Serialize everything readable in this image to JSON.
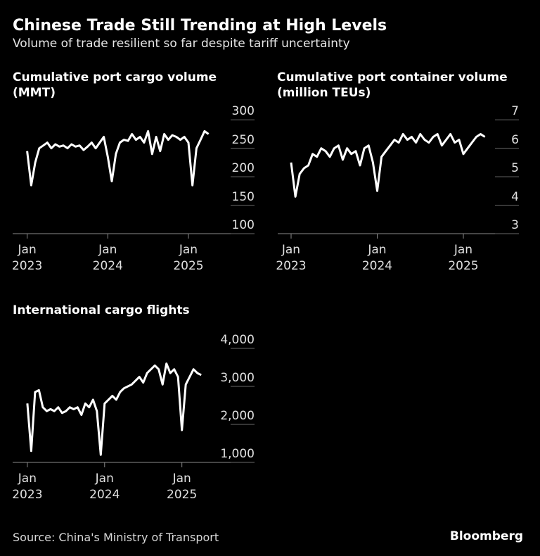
{
  "title": "Chinese Trade Still Trending at High Levels",
  "subtitle": "Volume of trade resilient so far despite tariff uncertainty",
  "source": "Source: China's Ministry of Transport",
  "brand": "Bloomberg",
  "chart_data": [
    {
      "type": "line",
      "title": "Cumulative port cargo volume (MMT)",
      "x": [
        2023,
        2023.05,
        2023.1,
        2023.15,
        2023.2,
        2023.25,
        2023.3,
        2023.35,
        2023.4,
        2023.45,
        2023.5,
        2023.55,
        2023.6,
        2023.65,
        2023.7,
        2023.75,
        2023.8,
        2023.85,
        2023.9,
        2023.95,
        2024,
        2024.05,
        2024.1,
        2024.15,
        2024.2,
        2024.25,
        2024.3,
        2024.35,
        2024.4,
        2024.45,
        2024.5,
        2024.55,
        2024.6,
        2024.65,
        2024.7,
        2024.75,
        2024.8,
        2024.85,
        2024.9,
        2024.95,
        2025,
        2025.05,
        2025.1,
        2025.15,
        2025.2,
        2025.25
      ],
      "values": [
        245,
        185,
        225,
        250,
        255,
        260,
        250,
        257,
        253,
        255,
        250,
        257,
        253,
        255,
        247,
        253,
        260,
        250,
        260,
        270,
        235,
        192,
        240,
        260,
        265,
        263,
        275,
        265,
        270,
        260,
        280,
        240,
        270,
        245,
        275,
        265,
        273,
        270,
        265,
        270,
        260,
        185,
        250,
        265,
        280,
        275
      ],
      "color": "#ffffff",
      "xlim": [
        2022.82,
        2025.82
      ],
      "ylim": [
        100,
        330
      ],
      "xticks": [
        {
          "value": 2023,
          "label": "Jan\n2023"
        },
        {
          "value": 2024,
          "label": "Jan\n2024"
        },
        {
          "value": 2025,
          "label": "Jan\n2025"
        }
      ],
      "yticks": [
        100,
        150,
        200,
        250,
        300
      ]
    },
    {
      "type": "line",
      "title": "Cumulative port container volume (million TEUs)",
      "x": [
        2023,
        2023.05,
        2023.1,
        2023.15,
        2023.2,
        2023.25,
        2023.3,
        2023.35,
        2023.4,
        2023.45,
        2023.5,
        2023.55,
        2023.6,
        2023.65,
        2023.7,
        2023.75,
        2023.8,
        2023.85,
        2023.9,
        2023.95,
        2024,
        2024.05,
        2024.1,
        2024.15,
        2024.2,
        2024.25,
        2024.3,
        2024.35,
        2024.4,
        2024.45,
        2024.5,
        2024.55,
        2024.6,
        2024.65,
        2024.7,
        2024.75,
        2024.8,
        2024.85,
        2024.9,
        2024.95,
        2025,
        2025.05,
        2025.1,
        2025.15,
        2025.2,
        2025.25
      ],
      "values": [
        5.5,
        4.3,
        5.1,
        5.3,
        5.4,
        5.8,
        5.7,
        6.0,
        5.9,
        5.7,
        6.0,
        6.1,
        5.6,
        6.0,
        5.8,
        5.9,
        5.4,
        6.0,
        6.1,
        5.5,
        4.5,
        5.7,
        5.9,
        6.1,
        6.3,
        6.2,
        6.5,
        6.3,
        6.4,
        6.2,
        6.5,
        6.3,
        6.2,
        6.4,
        6.5,
        6.1,
        6.3,
        6.5,
        6.2,
        6.3,
        5.8,
        6.0,
        6.2,
        6.4,
        6.5,
        6.4
      ],
      "color": "#ffffff",
      "xlim": [
        2022.845,
        2025.645
      ],
      "ylim": [
        3,
        7.6
      ],
      "xticks": [
        {
          "value": 2023,
          "label": "Jan\n2023"
        },
        {
          "value": 2024,
          "label": "Jan\n2024"
        },
        {
          "value": 2025,
          "label": "Jan\n2025"
        }
      ],
      "yticks": [
        3,
        4,
        5,
        6,
        7
      ]
    },
    {
      "type": "line",
      "title": "International cargo flights",
      "x": [
        2023,
        2023.05,
        2023.1,
        2023.15,
        2023.2,
        2023.25,
        2023.3,
        2023.35,
        2023.4,
        2023.45,
        2023.5,
        2023.55,
        2023.6,
        2023.65,
        2023.7,
        2023.75,
        2023.8,
        2023.85,
        2023.9,
        2023.95,
        2024,
        2024.05,
        2024.1,
        2024.15,
        2024.2,
        2024.25,
        2024.3,
        2024.35,
        2024.4,
        2024.45,
        2024.5,
        2024.55,
        2024.6,
        2024.65,
        2024.7,
        2024.75,
        2024.8,
        2024.85,
        2024.9,
        2024.95,
        2025,
        2025.05,
        2025.1,
        2025.15,
        2025.2,
        2025.25
      ],
      "values": [
        2550,
        1300,
        2850,
        2900,
        2450,
        2350,
        2400,
        2350,
        2450,
        2300,
        2350,
        2450,
        2400,
        2450,
        2250,
        2550,
        2450,
        2650,
        2350,
        1200,
        2550,
        2650,
        2750,
        2650,
        2850,
        2950,
        3000,
        3050,
        3150,
        3250,
        3100,
        3350,
        3450,
        3550,
        3450,
        3050,
        3600,
        3350,
        3450,
        3250,
        1850,
        3050,
        3250,
        3450,
        3350,
        3300
      ],
      "color": "#ffffff",
      "xlim": [
        2022.81,
        2025.94
      ],
      "ylim": [
        1000,
        4500
      ],
      "xticks": [
        {
          "value": 2023,
          "label": "Jan\n2023"
        },
        {
          "value": 2024,
          "label": "Jan\n2024"
        },
        {
          "value": 2025,
          "label": "Jan\n2025"
        }
      ],
      "yticks": [
        {
          "value": 1000,
          "label": "1,000"
        },
        {
          "value": 2000,
          "label": "2,000"
        },
        {
          "value": 3000,
          "label": "3,000"
        },
        {
          "value": 4000,
          "label": "4,000"
        }
      ]
    }
  ]
}
